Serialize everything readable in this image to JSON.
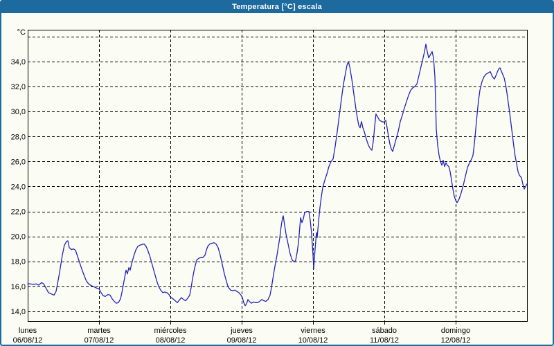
{
  "window": {
    "title": "Temperatura [°C] escala"
  },
  "colors": {
    "title_bar": "#1d6a9e",
    "window_border": "#1d6a9e",
    "title_text": "#ffffff",
    "content_bg": "#fbfcf4",
    "grid": "#000000",
    "axis_text": "#000000",
    "series_line": "#2323bb"
  },
  "chart_data": {
    "type": "line",
    "title": "Temperatura [°C] escala",
    "ylabel": "°C",
    "xlabel": "",
    "ylim": [
      13.22,
      36.55
    ],
    "xlim_days": [
      0,
      7
    ],
    "grid": "dashed",
    "legend": "none",
    "y_gridline_values": [
      14,
      16,
      18,
      20,
      22,
      24,
      26,
      28,
      30,
      32,
      34,
      36
    ],
    "y_tick_labels": [
      "14,0",
      "16,0",
      "18,0",
      "20,0",
      "22,0",
      "24,0",
      "26,0",
      "28,0",
      "30,0",
      "32,0",
      "34,0"
    ],
    "x_days": [
      {
        "name": "lunes",
        "date": "06/08/12"
      },
      {
        "name": "martes",
        "date": "07/08/12"
      },
      {
        "name": "miércoles",
        "date": "08/08/12"
      },
      {
        "name": "jueves",
        "date": "09/08/12"
      },
      {
        "name": "viernes",
        "date": "10/08/12"
      },
      {
        "name": "sábado",
        "date": "11/08/12"
      },
      {
        "name": "domingo",
        "date": "12/08/12"
      }
    ],
    "series": [
      {
        "name": "Temperatura [°C]",
        "color": "#2323bb",
        "points": [
          [
            0.0,
            16.2
          ],
          [
            0.039,
            16.2
          ],
          [
            0.078,
            16.15
          ],
          [
            0.117,
            16.2
          ],
          [
            0.155,
            16.1
          ],
          [
            0.194,
            16.3
          ],
          [
            0.223,
            16.2
          ],
          [
            0.252,
            15.9
          ],
          [
            0.291,
            15.5
          ],
          [
            0.33,
            15.4
          ],
          [
            0.369,
            15.3
          ],
          [
            0.398,
            15.6
          ],
          [
            0.417,
            16.2
          ],
          [
            0.437,
            16.8
          ],
          [
            0.466,
            17.8
          ],
          [
            0.485,
            18.5
          ],
          [
            0.515,
            19.3
          ],
          [
            0.544,
            19.6
          ],
          [
            0.563,
            19.65
          ],
          [
            0.583,
            19.1
          ],
          [
            0.612,
            18.95
          ],
          [
            0.641,
            19.0
          ],
          [
            0.67,
            18.9
          ],
          [
            0.699,
            18.4
          ],
          [
            0.728,
            17.9
          ],
          [
            0.757,
            17.4
          ],
          [
            0.796,
            16.8
          ],
          [
            0.825,
            16.4
          ],
          [
            0.854,
            16.2
          ],
          [
            0.893,
            16.05
          ],
          [
            0.932,
            15.95
          ],
          [
            0.971,
            15.85
          ],
          [
            1.0,
            15.8
          ],
          [
            1.029,
            15.5
          ],
          [
            1.058,
            15.25
          ],
          [
            1.087,
            15.2
          ],
          [
            1.126,
            15.35
          ],
          [
            1.155,
            15.3
          ],
          [
            1.184,
            15.0
          ],
          [
            1.214,
            14.8
          ],
          [
            1.243,
            14.65
          ],
          [
            1.272,
            14.7
          ],
          [
            1.301,
            15.0
          ],
          [
            1.32,
            15.5
          ],
          [
            1.34,
            16.1
          ],
          [
            1.359,
            16.7
          ],
          [
            1.379,
            17.3
          ],
          [
            1.398,
            17.0
          ],
          [
            1.417,
            17.5
          ],
          [
            1.437,
            17.3
          ],
          [
            1.456,
            17.8
          ],
          [
            1.485,
            18.4
          ],
          [
            1.515,
            18.9
          ],
          [
            1.544,
            19.2
          ],
          [
            1.573,
            19.3
          ],
          [
            1.602,
            19.35
          ],
          [
            1.631,
            19.4
          ],
          [
            1.66,
            19.2
          ],
          [
            1.689,
            18.8
          ],
          [
            1.718,
            18.3
          ],
          [
            1.748,
            17.7
          ],
          [
            1.777,
            17.1
          ],
          [
            1.806,
            16.5
          ],
          [
            1.835,
            16.0
          ],
          [
            1.864,
            15.7
          ],
          [
            1.893,
            15.5
          ],
          [
            1.922,
            15.55
          ],
          [
            1.951,
            15.5
          ],
          [
            1.981,
            15.35
          ],
          [
            2.0,
            15.15
          ],
          [
            2.039,
            15.0
          ],
          [
            2.068,
            14.85
          ],
          [
            2.097,
            14.7
          ],
          [
            2.126,
            14.9
          ],
          [
            2.155,
            15.1
          ],
          [
            2.184,
            14.95
          ],
          [
            2.214,
            14.85
          ],
          [
            2.243,
            15.05
          ],
          [
            2.272,
            15.3
          ],
          [
            2.291,
            15.9
          ],
          [
            2.311,
            16.6
          ],
          [
            2.33,
            17.2
          ],
          [
            2.35,
            17.7
          ],
          [
            2.369,
            18.1
          ],
          [
            2.398,
            18.25
          ],
          [
            2.427,
            18.3
          ],
          [
            2.456,
            18.3
          ],
          [
            2.485,
            18.5
          ],
          [
            2.505,
            18.9
          ],
          [
            2.524,
            19.2
          ],
          [
            2.553,
            19.4
          ],
          [
            2.582,
            19.45
          ],
          [
            2.612,
            19.5
          ],
          [
            2.641,
            19.4
          ],
          [
            2.67,
            19.1
          ],
          [
            2.699,
            18.5
          ],
          [
            2.718,
            18.0
          ],
          [
            2.738,
            17.5
          ],
          [
            2.757,
            17.0
          ],
          [
            2.777,
            16.6
          ],
          [
            2.796,
            16.2
          ],
          [
            2.816,
            15.9
          ],
          [
            2.845,
            15.7
          ],
          [
            2.874,
            15.65
          ],
          [
            2.903,
            15.7
          ],
          [
            2.932,
            15.6
          ],
          [
            2.961,
            15.5
          ],
          [
            2.99,
            15.3
          ],
          [
            3.01,
            15.1
          ],
          [
            3.029,
            14.7
          ],
          [
            3.049,
            14.45
          ],
          [
            3.068,
            14.6
          ],
          [
            3.087,
            14.95
          ],
          [
            3.107,
            14.8
          ],
          [
            3.136,
            14.65
          ],
          [
            3.165,
            14.75
          ],
          [
            3.194,
            14.7
          ],
          [
            3.223,
            14.7
          ],
          [
            3.252,
            14.8
          ],
          [
            3.282,
            14.95
          ],
          [
            3.311,
            14.85
          ],
          [
            3.34,
            14.8
          ],
          [
            3.369,
            14.95
          ],
          [
            3.398,
            15.3
          ],
          [
            3.417,
            15.9
          ],
          [
            3.437,
            16.6
          ],
          [
            3.456,
            17.3
          ],
          [
            3.476,
            17.9
          ],
          [
            3.495,
            18.5
          ],
          [
            3.515,
            19.2
          ],
          [
            3.534,
            19.9
          ],
          [
            3.553,
            20.8
          ],
          [
            3.573,
            21.5
          ],
          [
            3.583,
            21.65
          ],
          [
            3.602,
            20.9
          ],
          [
            3.621,
            20.2
          ],
          [
            3.65,
            19.4
          ],
          [
            3.68,
            18.6
          ],
          [
            3.709,
            18.1
          ],
          [
            3.738,
            17.95
          ],
          [
            3.757,
            18.1
          ],
          [
            3.777,
            18.7
          ],
          [
            3.796,
            19.5
          ],
          [
            3.816,
            20.8
          ],
          [
            3.825,
            21.5
          ],
          [
            3.845,
            21.1
          ],
          [
            3.864,
            21.4
          ],
          [
            3.883,
            21.9
          ],
          [
            3.913,
            22.0
          ],
          [
            3.942,
            22.0
          ],
          [
            3.961,
            21.3
          ],
          [
            3.981,
            20.2
          ],
          [
            4.0,
            18.5
          ],
          [
            4.01,
            17.4
          ],
          [
            4.029,
            19.0
          ],
          [
            4.049,
            20.3
          ],
          [
            4.058,
            19.9
          ],
          [
            4.078,
            21.2
          ],
          [
            4.097,
            22.3
          ],
          [
            4.117,
            23.2
          ],
          [
            4.136,
            23.9
          ],
          [
            4.165,
            24.5
          ],
          [
            4.194,
            25.0
          ],
          [
            4.223,
            25.6
          ],
          [
            4.252,
            26.0
          ],
          [
            4.282,
            26.2
          ],
          [
            4.311,
            27.2
          ],
          [
            4.34,
            28.4
          ],
          [
            4.369,
            29.7
          ],
          [
            4.398,
            31.0
          ],
          [
            4.427,
            32.2
          ],
          [
            4.456,
            33.1
          ],
          [
            4.476,
            33.7
          ],
          [
            4.495,
            34.0
          ],
          [
            4.515,
            33.6
          ],
          [
            4.544,
            32.6
          ],
          [
            4.573,
            31.4
          ],
          [
            4.602,
            30.2
          ],
          [
            4.621,
            29.5
          ],
          [
            4.641,
            28.9
          ],
          [
            4.66,
            28.7
          ],
          [
            4.68,
            29.2
          ],
          [
            4.699,
            28.7
          ],
          [
            4.718,
            28.4
          ],
          [
            4.748,
            27.8
          ],
          [
            4.777,
            27.3
          ],
          [
            4.806,
            27.0
          ],
          [
            4.825,
            26.9
          ],
          [
            4.845,
            27.6
          ],
          [
            4.864,
            28.8
          ],
          [
            4.883,
            29.8
          ],
          [
            4.903,
            29.6
          ],
          [
            4.932,
            29.3
          ],
          [
            4.961,
            29.2
          ],
          [
            4.99,
            29.15
          ],
          [
            5.019,
            29.3
          ],
          [
            5.039,
            28.7
          ],
          [
            5.058,
            28.0
          ],
          [
            5.078,
            27.4
          ],
          [
            5.097,
            27.0
          ],
          [
            5.117,
            26.8
          ],
          [
            5.136,
            27.2
          ],
          [
            5.165,
            27.8
          ],
          [
            5.194,
            28.4
          ],
          [
            5.223,
            29.2
          ],
          [
            5.252,
            29.7
          ],
          [
            5.282,
            30.3
          ],
          [
            5.311,
            30.8
          ],
          [
            5.34,
            31.3
          ],
          [
            5.369,
            31.7
          ],
          [
            5.398,
            31.9
          ],
          [
            5.427,
            32.0
          ],
          [
            5.456,
            32.2
          ],
          [
            5.485,
            32.9
          ],
          [
            5.515,
            33.6
          ],
          [
            5.544,
            34.3
          ],
          [
            5.563,
            34.8
          ],
          [
            5.583,
            35.4
          ],
          [
            5.602,
            34.8
          ],
          [
            5.621,
            34.3
          ],
          [
            5.641,
            34.5
          ],
          [
            5.67,
            34.8
          ],
          [
            5.689,
            34.3
          ],
          [
            5.709,
            32.8
          ],
          [
            5.718,
            30.8
          ],
          [
            5.728,
            28.6
          ],
          [
            5.748,
            27.3
          ],
          [
            5.767,
            26.5
          ],
          [
            5.786,
            26.0
          ],
          [
            5.806,
            25.7
          ],
          [
            5.825,
            26.1
          ],
          [
            5.845,
            25.6
          ],
          [
            5.864,
            25.9
          ],
          [
            5.883,
            25.7
          ],
          [
            5.903,
            25.6
          ],
          [
            5.922,
            25.2
          ],
          [
            5.942,
            24.5
          ],
          [
            5.961,
            23.8
          ],
          [
            5.981,
            23.2
          ],
          [
            6.0,
            22.9
          ],
          [
            6.019,
            22.7
          ],
          [
            6.049,
            23.0
          ],
          [
            6.078,
            23.5
          ],
          [
            6.107,
            24.1
          ],
          [
            6.136,
            24.8
          ],
          [
            6.165,
            25.5
          ],
          [
            6.194,
            25.9
          ],
          [
            6.223,
            26.2
          ],
          [
            6.243,
            26.5
          ],
          [
            6.262,
            27.4
          ],
          [
            6.282,
            28.6
          ],
          [
            6.301,
            29.8
          ],
          [
            6.32,
            30.9
          ],
          [
            6.34,
            31.7
          ],
          [
            6.369,
            32.4
          ],
          [
            6.398,
            32.8
          ],
          [
            6.427,
            33.0
          ],
          [
            6.456,
            33.1
          ],
          [
            6.485,
            33.2
          ],
          [
            6.515,
            32.8
          ],
          [
            6.544,
            32.6
          ],
          [
            6.573,
            33.0
          ],
          [
            6.602,
            33.4
          ],
          [
            6.621,
            33.5
          ],
          [
            6.65,
            33.1
          ],
          [
            6.68,
            32.7
          ],
          [
            6.699,
            32.2
          ],
          [
            6.718,
            31.5
          ],
          [
            6.738,
            30.7
          ],
          [
            6.757,
            29.9
          ],
          [
            6.777,
            29.0
          ],
          [
            6.796,
            28.1
          ],
          [
            6.816,
            27.2
          ],
          [
            6.835,
            26.4
          ],
          [
            6.855,
            25.8
          ],
          [
            6.874,
            25.2
          ],
          [
            6.893,
            24.9
          ],
          [
            6.922,
            24.7
          ],
          [
            6.942,
            24.2
          ],
          [
            6.961,
            23.8
          ],
          [
            6.981,
            24.0
          ],
          [
            6.998,
            24.2
          ]
        ]
      }
    ]
  }
}
